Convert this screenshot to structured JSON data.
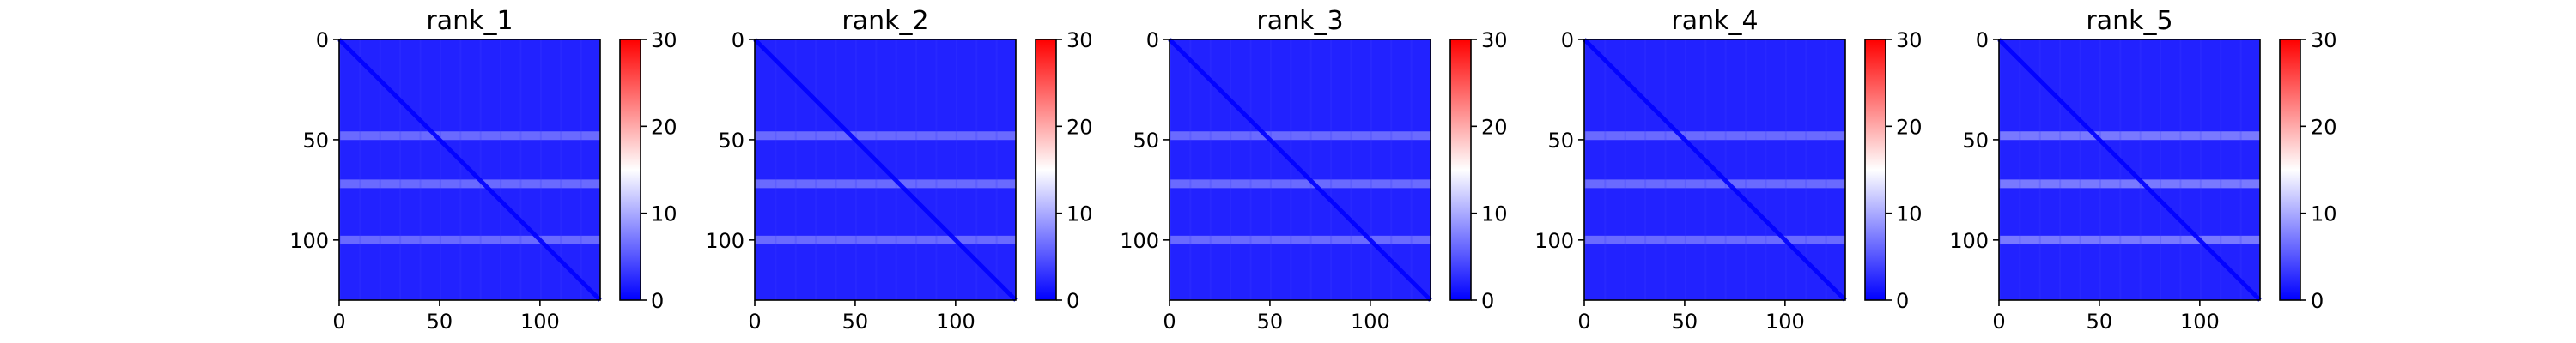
{
  "chart_data": [
    {
      "type": "heatmap",
      "title": "rank_1",
      "xlabel": "",
      "ylabel": "",
      "size": 130,
      "x_ticks": [
        0,
        50,
        100
      ],
      "y_ticks": [
        0,
        50,
        100
      ],
      "xlim": [
        0,
        130
      ],
      "ylim": [
        130,
        0
      ],
      "colorbar": {
        "min": 0,
        "max": 30,
        "ticks": [
          0,
          10,
          20,
          30
        ],
        "colormap": "bwr"
      },
      "value_summary": {
        "background": 2,
        "band_rows": [
          48,
          72,
          100
        ],
        "band_value": 7,
        "diagonal": 0
      }
    },
    {
      "type": "heatmap",
      "title": "rank_2",
      "xlabel": "",
      "ylabel": "",
      "size": 130,
      "x_ticks": [
        0,
        50,
        100
      ],
      "y_ticks": [
        0,
        50,
        100
      ],
      "xlim": [
        0,
        130
      ],
      "ylim": [
        130,
        0
      ],
      "colorbar": {
        "min": 0,
        "max": 30,
        "ticks": [
          0,
          10,
          20,
          30
        ],
        "colormap": "bwr"
      },
      "value_summary": {
        "background": 2,
        "band_rows": [
          48,
          72,
          100
        ],
        "band_value": 7,
        "diagonal": 0
      }
    },
    {
      "type": "heatmap",
      "title": "rank_3",
      "xlabel": "",
      "ylabel": "",
      "size": 130,
      "x_ticks": [
        0,
        50,
        100
      ],
      "y_ticks": [
        0,
        50,
        100
      ],
      "xlim": [
        0,
        130
      ],
      "ylim": [
        130,
        0
      ],
      "colorbar": {
        "min": 0,
        "max": 30,
        "ticks": [
          0,
          10,
          20,
          30
        ],
        "colormap": "bwr"
      },
      "value_summary": {
        "background": 2,
        "band_rows": [
          48,
          72,
          100
        ],
        "band_value": 7,
        "diagonal": 0
      }
    },
    {
      "type": "heatmap",
      "title": "rank_4",
      "xlabel": "",
      "ylabel": "",
      "size": 130,
      "x_ticks": [
        0,
        50,
        100
      ],
      "y_ticks": [
        0,
        50,
        100
      ],
      "xlim": [
        0,
        130
      ],
      "ylim": [
        130,
        0
      ],
      "colorbar": {
        "min": 0,
        "max": 30,
        "ticks": [
          0,
          10,
          20,
          30
        ],
        "colormap": "bwr"
      },
      "value_summary": {
        "background": 2,
        "band_rows": [
          48,
          72,
          100
        ],
        "band_value": 7,
        "diagonal": 0
      }
    },
    {
      "type": "heatmap",
      "title": "rank_5",
      "xlabel": "",
      "ylabel": "",
      "size": 130,
      "x_ticks": [
        0,
        50,
        100
      ],
      "y_ticks": [
        0,
        50,
        100
      ],
      "xlim": [
        0,
        130
      ],
      "ylim": [
        130,
        0
      ],
      "colorbar": {
        "min": 0,
        "max": 30,
        "ticks": [
          0,
          10,
          20,
          30
        ],
        "colormap": "bwr"
      },
      "value_summary": {
        "background": 2,
        "band_rows": [
          48,
          72,
          100
        ],
        "band_value": 8,
        "diagonal": 0
      }
    }
  ],
  "colors": {
    "low": "#0000ff",
    "mid": "#ffffff",
    "high": "#ff0000",
    "axes": "#000000"
  }
}
